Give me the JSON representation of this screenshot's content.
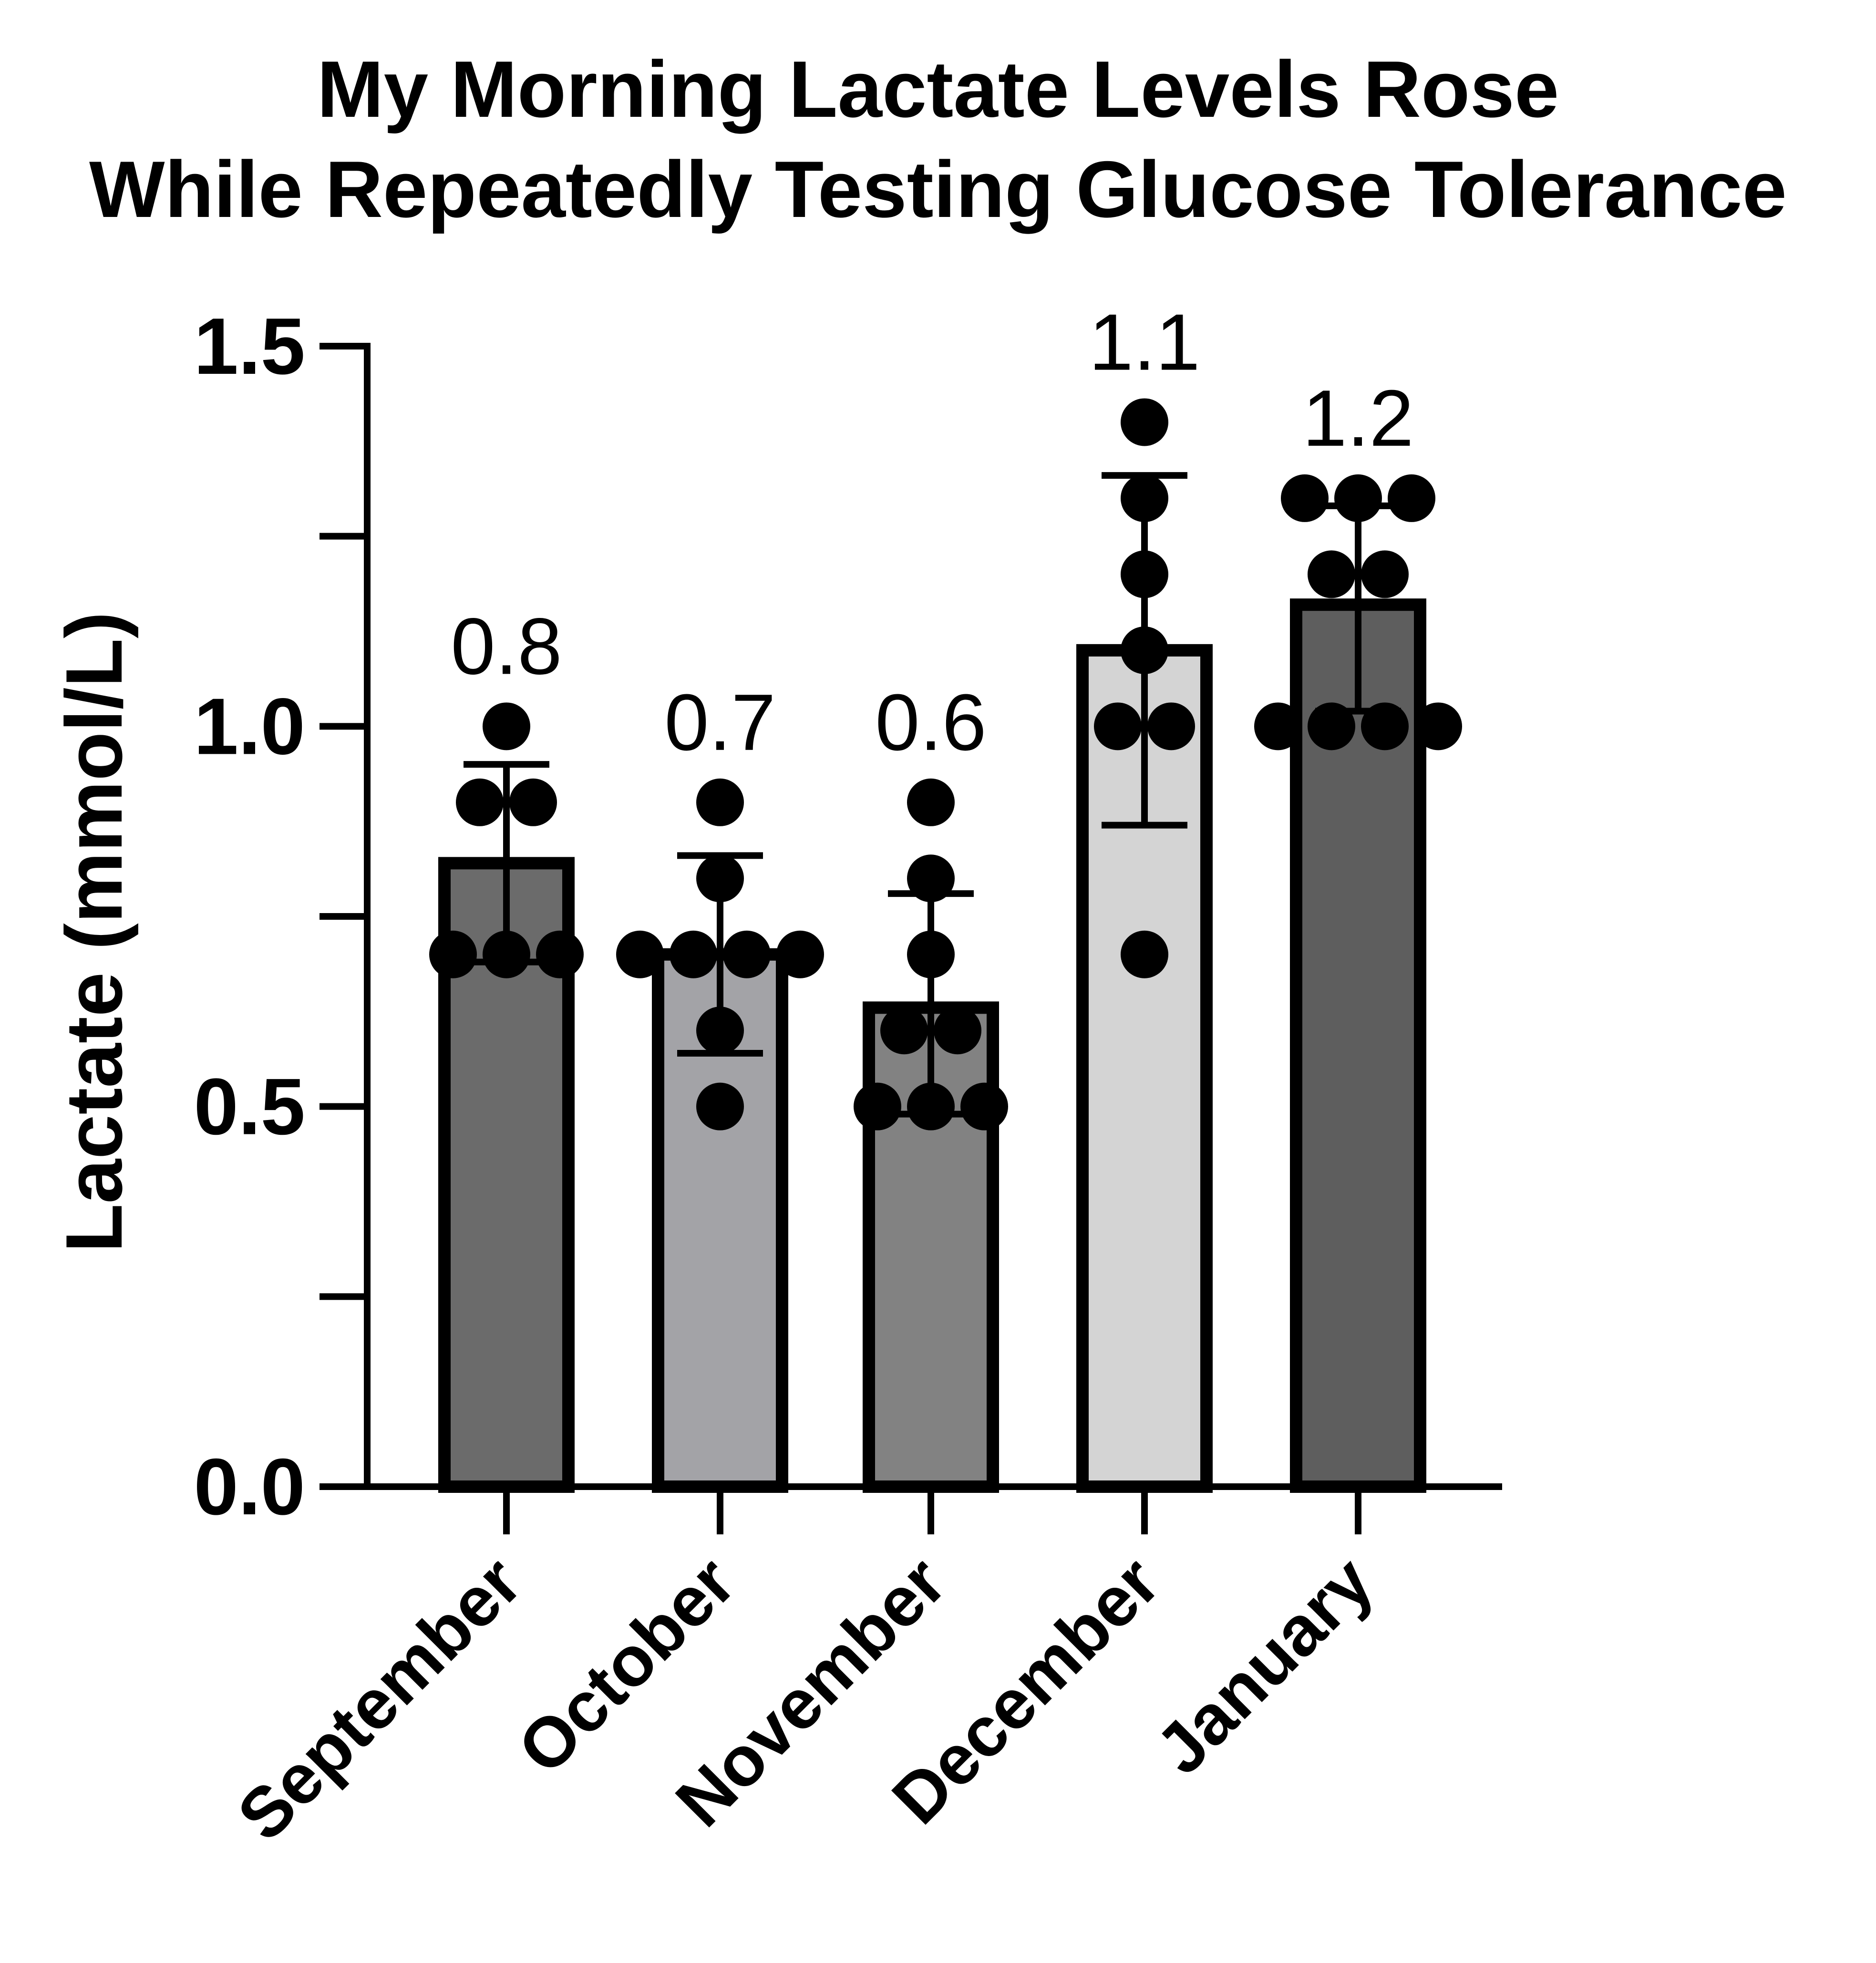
{
  "chart_data": {
    "type": "bar",
    "title_lines": [
      "My Morning Lactate Levels Rose",
      "While Repeatedly Testing Glucose Tolerance"
    ],
    "xlabel": "",
    "ylabel": "Lactate (mmol/L)",
    "ylim": [
      0,
      1.5
    ],
    "yticks": [
      "0.0",
      "0.5",
      "1.0",
      "1.5"
    ],
    "grid": false,
    "legend": "none",
    "categories": [
      "September",
      "October",
      "November",
      "December",
      "January"
    ],
    "means": [
      0.82,
      0.7,
      0.63,
      1.1,
      1.16
    ],
    "sd_low": [
      0.69,
      0.57,
      0.49,
      0.87,
      1.02
    ],
    "sd_high": [
      0.95,
      0.83,
      0.78,
      1.33,
      1.29
    ],
    "bar_labels": [
      "0.8",
      "0.7",
      "0.6",
      "1.1",
      "1.2"
    ],
    "bar_colors": [
      "#6b6b6b",
      "#a3a3a7",
      "#828282",
      "#d4d4d4",
      "#5e5e5e"
    ],
    "points": [
      [
        0.7,
        0.7,
        0.7,
        0.9,
        0.9,
        1.0
      ],
      [
        0.5,
        0.6,
        0.7,
        0.7,
        0.7,
        0.7,
        0.8,
        0.9
      ],
      [
        0.5,
        0.5,
        0.5,
        0.6,
        0.6,
        0.7,
        0.8,
        0.9
      ],
      [
        0.7,
        1.0,
        1.0,
        1.1,
        1.2,
        1.3,
        1.4
      ],
      [
        1.0,
        1.0,
        1.0,
        1.0,
        1.2,
        1.2,
        1.3,
        1.3,
        1.3
      ]
    ]
  }
}
